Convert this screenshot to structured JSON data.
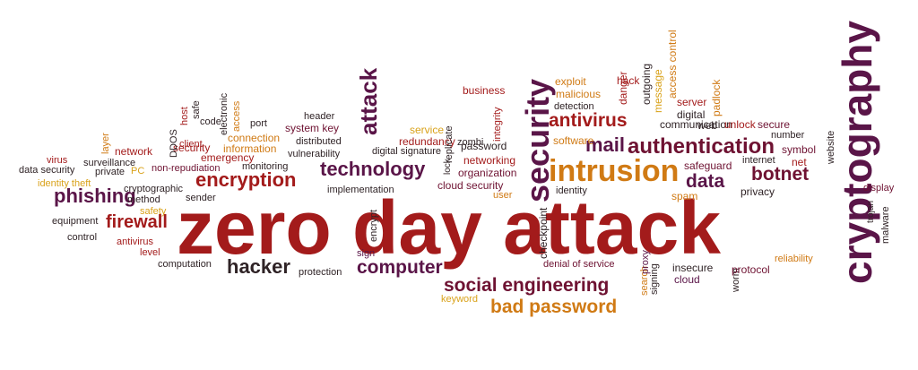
{
  "palette": {
    "red": "#a31b1b",
    "maroon": "#6e1232",
    "purple": "#5a1548",
    "orange": "#d07a14",
    "gold": "#d9a21a",
    "dark": "#2f2326"
  },
  "words": [
    {
      "text": "zero day attack",
      "color": "red"
    },
    {
      "text": "cryptography",
      "color": "purple"
    },
    {
      "text": "intrusion",
      "color": "orange"
    },
    {
      "text": "security",
      "color": "purple"
    },
    {
      "text": "authentication",
      "color": "maroon"
    },
    {
      "text": "encryption",
      "color": "red"
    },
    {
      "text": "technology",
      "color": "purple"
    },
    {
      "text": "phishing",
      "color": "purple"
    },
    {
      "text": "social engineering",
      "color": "maroon"
    },
    {
      "text": "bad password",
      "color": "orange"
    },
    {
      "text": "computer",
      "color": "purple"
    },
    {
      "text": "hacker",
      "color": "dark"
    },
    {
      "text": "firewall",
      "color": "red"
    },
    {
      "text": "attack",
      "color": "purple"
    },
    {
      "text": "antivirus",
      "color": "red"
    },
    {
      "text": "mail",
      "color": "purple"
    },
    {
      "text": "data",
      "color": "purple"
    },
    {
      "text": "botnet",
      "color": "maroon"
    },
    {
      "text": "business",
      "color": "red"
    },
    {
      "text": "exploit",
      "color": "orange"
    },
    {
      "text": "hack",
      "color": "red"
    },
    {
      "text": "malicious",
      "color": "orange"
    },
    {
      "text": "detection",
      "color": "dark"
    },
    {
      "text": "danger",
      "color": "red"
    },
    {
      "text": "outgoing",
      "color": "dark"
    },
    {
      "text": "message",
      "color": "gold"
    },
    {
      "text": "access control",
      "color": "orange"
    },
    {
      "text": "server",
      "color": "red"
    },
    {
      "text": "digital",
      "color": "dark"
    },
    {
      "text": "communication",
      "color": "dark"
    },
    {
      "text": "web",
      "color": "dark"
    },
    {
      "text": "padlock",
      "color": "orange"
    },
    {
      "text": "unlock",
      "color": "red"
    },
    {
      "text": "secure",
      "color": "maroon"
    },
    {
      "text": "number",
      "color": "dark"
    },
    {
      "text": "symbol",
      "color": "maroon"
    },
    {
      "text": "internet",
      "color": "dark"
    },
    {
      "text": "net",
      "color": "red"
    },
    {
      "text": "website",
      "color": "dark"
    },
    {
      "text": "display",
      "color": "maroon"
    },
    {
      "text": "trojan",
      "color": "dark"
    },
    {
      "text": "malware",
      "color": "dark"
    },
    {
      "text": "safeguard",
      "color": "maroon"
    },
    {
      "text": "spam",
      "color": "orange"
    },
    {
      "text": "privacy",
      "color": "dark"
    },
    {
      "text": "software",
      "color": "orange"
    },
    {
      "text": "identity",
      "color": "dark"
    },
    {
      "text": "service",
      "color": "gold"
    },
    {
      "text": "redundancy",
      "color": "red"
    },
    {
      "text": "digital signature",
      "color": "dark"
    },
    {
      "text": "replicate",
      "color": "dark"
    },
    {
      "text": "zombi",
      "color": "dark"
    },
    {
      "text": "integrity",
      "color": "red"
    },
    {
      "text": "password",
      "color": "dark"
    },
    {
      "text": "networking",
      "color": "red"
    },
    {
      "text": "organization",
      "color": "maroon"
    },
    {
      "text": "cloud security",
      "color": "maroon"
    },
    {
      "text": "user",
      "color": "orange"
    },
    {
      "text": "lock",
      "color": "dark"
    },
    {
      "text": "header",
      "color": "dark"
    },
    {
      "text": "system key",
      "color": "maroon"
    },
    {
      "text": "distributed",
      "color": "dark"
    },
    {
      "text": "vulnerability",
      "color": "dark"
    },
    {
      "text": "implementation",
      "color": "dark"
    },
    {
      "text": "port",
      "color": "dark"
    },
    {
      "text": "connection",
      "color": "orange"
    },
    {
      "text": "information",
      "color": "orange"
    },
    {
      "text": "emergency",
      "color": "red"
    },
    {
      "text": "monitoring",
      "color": "dark"
    },
    {
      "text": "access",
      "color": "orange"
    },
    {
      "text": "electronic",
      "color": "dark"
    },
    {
      "text": "code",
      "color": "dark"
    },
    {
      "text": "safe",
      "color": "dark"
    },
    {
      "text": "host",
      "color": "red"
    },
    {
      "text": "client",
      "color": "red"
    },
    {
      "text": "security",
      "color": "red"
    },
    {
      "text": "DDOS",
      "color": "dark"
    },
    {
      "text": "layer",
      "color": "orange"
    },
    {
      "text": "network",
      "color": "red"
    },
    {
      "text": "virus",
      "color": "red"
    },
    {
      "text": "surveillance",
      "color": "dark"
    },
    {
      "text": "data security",
      "color": "dark"
    },
    {
      "text": "private",
      "color": "dark"
    },
    {
      "text": "PC",
      "color": "gold"
    },
    {
      "text": "identity theft",
      "color": "gold"
    },
    {
      "text": "non-repudiation",
      "color": "maroon"
    },
    {
      "text": "cryptographic",
      "color": "dark"
    },
    {
      "text": "method",
      "color": "dark"
    },
    {
      "text": "sender",
      "color": "dark"
    },
    {
      "text": "safety",
      "color": "gold"
    },
    {
      "text": "equipment",
      "color": "dark"
    },
    {
      "text": "control",
      "color": "dark"
    },
    {
      "text": "antivirus",
      "color": "red"
    },
    {
      "text": "level",
      "color": "red"
    },
    {
      "text": "computation",
      "color": "dark"
    },
    {
      "text": "protection",
      "color": "dark"
    },
    {
      "text": "encrypt",
      "color": "dark"
    },
    {
      "text": "sign",
      "color": "purple"
    },
    {
      "text": "checkpoint",
      "color": "dark"
    },
    {
      "text": "denial of service",
      "color": "maroon"
    },
    {
      "text": "search",
      "color": "orange"
    },
    {
      "text": "signing",
      "color": "dark"
    },
    {
      "text": "proxy",
      "color": "purple"
    },
    {
      "text": "insecure",
      "color": "dark"
    },
    {
      "text": "cloud",
      "color": "purple"
    },
    {
      "text": "worm",
      "color": "dark"
    },
    {
      "text": "protocol",
      "color": "maroon"
    },
    {
      "text": "reliability",
      "color": "orange"
    },
    {
      "text": "keyword",
      "color": "gold"
    }
  ]
}
